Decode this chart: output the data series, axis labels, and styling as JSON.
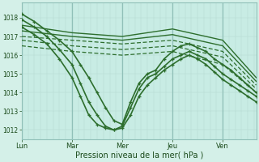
{
  "title": "",
  "xlabel": "Pression niveau de la mer( hPa )",
  "bg_color": "#d4f0e8",
  "plot_bg_color": "#c8ece4",
  "grid_color_fine": "#b0d8d0",
  "grid_color_day": "#90c0b8",
  "line_color": "#2d6e2d",
  "ylim": [
    1011.5,
    1018.8
  ],
  "xlim": [
    0,
    112
  ],
  "day_tick_positions": [
    0,
    24,
    48,
    72,
    96
  ],
  "day_labels": [
    "Lun",
    "Mar",
    "Mer",
    "Jeu",
    "Ven"
  ],
  "yticks": [
    1012,
    1013,
    1014,
    1015,
    1016,
    1017,
    1018
  ],
  "lines": [
    {
      "x": [
        0,
        24,
        48,
        72,
        96,
        112
      ],
      "y": [
        1017.6,
        1017.2,
        1017.0,
        1017.4,
        1016.8,
        1014.8
      ],
      "style": "solid",
      "lw": 1.0
    },
    {
      "x": [
        0,
        24,
        48,
        72,
        96,
        112
      ],
      "y": [
        1017.3,
        1017.0,
        1016.8,
        1017.1,
        1016.5,
        1014.6
      ],
      "style": "solid",
      "lw": 1.0
    },
    {
      "x": [
        0,
        24,
        48,
        72,
        96,
        112
      ],
      "y": [
        1017.0,
        1016.8,
        1016.6,
        1016.8,
        1016.2,
        1014.4
      ],
      "style": "dashed",
      "lw": 0.9
    },
    {
      "x": [
        0,
        24,
        48,
        72,
        96,
        112
      ],
      "y": [
        1016.8,
        1016.5,
        1016.3,
        1016.5,
        1015.9,
        1014.2
      ],
      "style": "dashed",
      "lw": 0.9
    },
    {
      "x": [
        0,
        24,
        48,
        72,
        96,
        112
      ],
      "y": [
        1016.5,
        1016.2,
        1016.0,
        1016.2,
        1015.5,
        1014.0
      ],
      "style": "dashed",
      "lw": 0.9
    },
    {
      "x": [
        0,
        6,
        12,
        18,
        24,
        28,
        32,
        36,
        40,
        44,
        48,
        52,
        56,
        60,
        64,
        68,
        72,
        76,
        80,
        84,
        88,
        92,
        96,
        100,
        104,
        108,
        112
      ],
      "y": [
        1018.2,
        1017.8,
        1017.3,
        1016.8,
        1016.2,
        1015.5,
        1014.8,
        1014.0,
        1013.2,
        1012.5,
        1012.3,
        1013.5,
        1014.5,
        1015.0,
        1015.2,
        1015.8,
        1016.2,
        1016.5,
        1016.6,
        1016.4,
        1016.2,
        1015.8,
        1015.5,
        1015.2,
        1014.8,
        1014.4,
        1014.0
      ],
      "style": "solid_marker",
      "lw": 1.2
    },
    {
      "x": [
        0,
        6,
        12,
        18,
        24,
        28,
        32,
        36,
        40,
        44,
        48,
        52,
        56,
        60,
        64,
        68,
        72,
        76,
        80,
        84,
        88,
        92,
        96,
        100,
        104,
        108,
        112
      ],
      "y": [
        1017.9,
        1017.5,
        1017.0,
        1016.3,
        1015.5,
        1014.5,
        1013.5,
        1012.8,
        1012.2,
        1012.0,
        1012.2,
        1013.2,
        1014.2,
        1014.8,
        1015.0,
        1015.4,
        1015.8,
        1016.0,
        1016.2,
        1016.0,
        1015.8,
        1015.4,
        1015.0,
        1014.7,
        1014.4,
        1014.1,
        1013.8
      ],
      "style": "solid_marker",
      "lw": 1.2
    },
    {
      "x": [
        0,
        6,
        12,
        18,
        24,
        28,
        32,
        36,
        40,
        44,
        48,
        52,
        56,
        60,
        64,
        68,
        72,
        76,
        80,
        84,
        88,
        92,
        96,
        100,
        104,
        108,
        112
      ],
      "y": [
        1017.5,
        1017.1,
        1016.6,
        1015.8,
        1014.8,
        1013.8,
        1012.8,
        1012.3,
        1012.1,
        1012.0,
        1012.1,
        1012.8,
        1013.8,
        1014.4,
        1014.8,
        1015.2,
        1015.5,
        1015.8,
        1016.0,
        1015.8,
        1015.5,
        1015.1,
        1014.7,
        1014.4,
        1014.1,
        1013.8,
        1013.5
      ],
      "style": "solid_marker",
      "lw": 1.2
    }
  ]
}
